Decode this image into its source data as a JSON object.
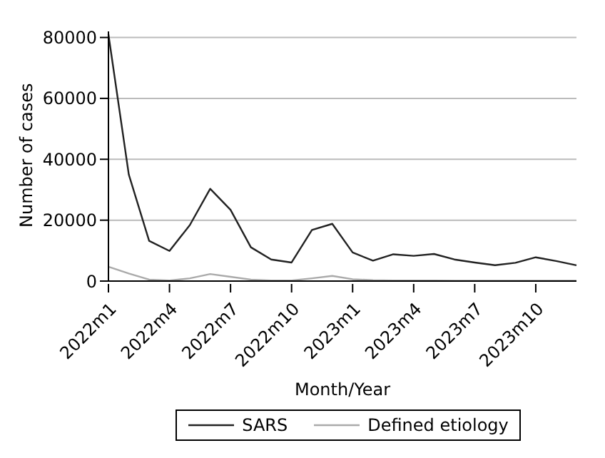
{
  "chart_data": {
    "type": "line",
    "xlabel": "Month/Year",
    "ylabel": "Number of cases",
    "categories": [
      "2022m1",
      null,
      null,
      "2022m4",
      null,
      null,
      "2022m7",
      null,
      null,
      "2022m10",
      null,
      null,
      "2023m1",
      null,
      null,
      "2023m4",
      null,
      null,
      "2023m7",
      null,
      null,
      "2023m10",
      null,
      null
    ],
    "ylim": [
      0,
      82000
    ],
    "yticks": [
      0,
      20000,
      40000,
      60000,
      80000
    ],
    "series": [
      {
        "name": "SARS",
        "color": "#222222",
        "values": [
          81000,
          35000,
          13200,
          9900,
          18400,
          30300,
          23400,
          11100,
          7100,
          6100,
          16800,
          18800,
          9400,
          6700,
          8800,
          8300,
          8900,
          7100,
          6100,
          5200,
          6000,
          7800,
          6600,
          5200
        ]
      },
      {
        "name": "Defined etiology",
        "color": "#aaaaaa",
        "values": [
          4700,
          2500,
          500,
          200,
          900,
          2300,
          1400,
          500,
          200,
          200,
          900,
          1700,
          600,
          300,
          200,
          200,
          200,
          100,
          100,
          100,
          100,
          100,
          100,
          100
        ]
      }
    ],
    "grid": "y",
    "legend": "bottom",
    "marker": "none",
    "line_style": "solid"
  }
}
